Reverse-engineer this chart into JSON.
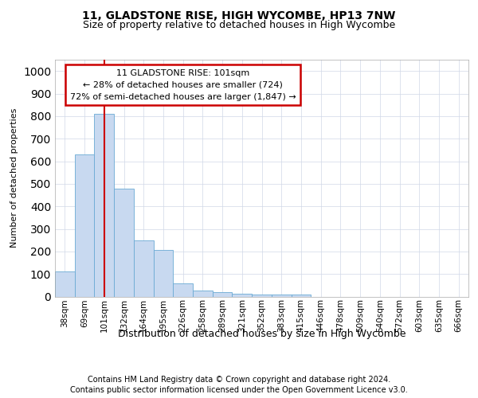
{
  "title1": "11, GLADSTONE RISE, HIGH WYCOMBE, HP13 7NW",
  "title2": "Size of property relative to detached houses in High Wycombe",
  "xlabel": "Distribution of detached houses by size in High Wycombe",
  "ylabel": "Number of detached properties",
  "footnote1": "Contains HM Land Registry data © Crown copyright and database right 2024.",
  "footnote2": "Contains public sector information licensed under the Open Government Licence v3.0.",
  "annotation_line1": "11 GLADSTONE RISE: 101sqm",
  "annotation_line2": "← 28% of detached houses are smaller (724)",
  "annotation_line3": "72% of semi-detached houses are larger (1,847) →",
  "categories": [
    "38sqm",
    "69sqm",
    "101sqm",
    "132sqm",
    "164sqm",
    "195sqm",
    "226sqm",
    "258sqm",
    "289sqm",
    "321sqm",
    "352sqm",
    "383sqm",
    "415sqm",
    "446sqm",
    "478sqm",
    "509sqm",
    "540sqm",
    "572sqm",
    "603sqm",
    "635sqm",
    "666sqm"
  ],
  "values": [
    110,
    630,
    810,
    480,
    250,
    207,
    60,
    28,
    18,
    12,
    10,
    10,
    10,
    0,
    0,
    0,
    0,
    0,
    0,
    0,
    0
  ],
  "bar_color": "#c8d9f0",
  "bar_edge_color": "#6aaad4",
  "highlight_index": 2,
  "ylim": [
    0,
    1050
  ],
  "yticks": [
    0,
    100,
    200,
    300,
    400,
    500,
    600,
    700,
    800,
    900,
    1000
  ],
  "grid_color": "#d0d8e8",
  "annotation_box_edge_color": "#cc0000",
  "red_line_color": "#cc0000",
  "title1_fontsize": 10,
  "title2_fontsize": 9,
  "ylabel_fontsize": 8,
  "xlabel_fontsize": 9,
  "tick_fontsize": 7.5,
  "footnote_fontsize": 7,
  "annotation_fontsize": 8
}
